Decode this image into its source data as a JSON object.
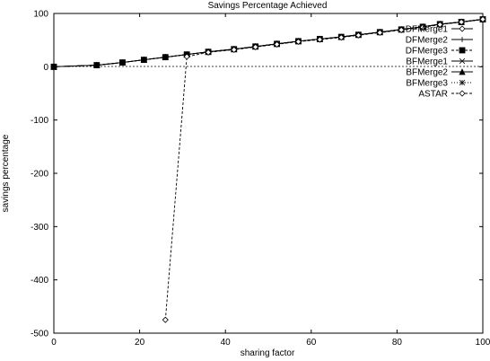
{
  "chart_data": {
    "type": "line",
    "title": "Savings Percentage Achieved",
    "xlabel": "sharing factor",
    "ylabel": "savings percentage",
    "xlim": [
      0,
      100
    ],
    "ylim": [
      -500,
      100
    ],
    "xticks": [
      "0",
      "20",
      "40",
      "60",
      "80",
      "100"
    ],
    "yticks": [
      "100",
      "0",
      "-100",
      "-200",
      "-300",
      "-400",
      "-500"
    ],
    "grid": false,
    "legend_position": "top-right",
    "zero_line": true,
    "series": [
      {
        "name": "DFMerge1",
        "marker": "diamond",
        "dash": "solid",
        "x": [
          0,
          10,
          16,
          21,
          26,
          31,
          36,
          42,
          47,
          52,
          57,
          62,
          67,
          71,
          76,
          81,
          86,
          90,
          95,
          100
        ],
        "y": [
          0,
          3,
          8,
          13,
          18,
          23,
          28,
          33,
          38,
          43,
          48,
          52,
          56,
          60,
          65,
          70,
          75,
          80,
          84,
          89
        ]
      },
      {
        "name": "DFMerge2",
        "marker": "plus",
        "dash": "solid",
        "x": [
          0,
          10,
          16,
          21,
          26,
          31,
          36,
          42,
          47,
          52,
          57,
          62,
          67,
          71,
          76,
          81,
          86,
          90,
          95,
          100
        ],
        "y": [
          0,
          3,
          8,
          13,
          18,
          23,
          28,
          33,
          38,
          43,
          48,
          52,
          56,
          60,
          65,
          70,
          75,
          80,
          84,
          89
        ]
      },
      {
        "name": "DFMerge3",
        "marker": "square",
        "dash": "dashed",
        "x": [
          0,
          10,
          16,
          21,
          26,
          31,
          36,
          42,
          47,
          52,
          57,
          62,
          67,
          71,
          76,
          81,
          86,
          90,
          95,
          100
        ],
        "y": [
          0,
          3,
          8,
          13,
          18,
          23,
          28,
          33,
          38,
          43,
          48,
          52,
          56,
          60,
          65,
          70,
          75,
          80,
          84,
          89
        ]
      },
      {
        "name": "BFMerge1",
        "marker": "cross",
        "dash": "solid",
        "x": [
          0,
          10,
          16,
          21,
          26,
          31,
          36,
          42,
          47,
          52,
          57,
          62,
          67,
          71,
          76,
          81,
          86,
          90,
          95,
          100
        ],
        "y": [
          0,
          3,
          8,
          13,
          18,
          23,
          28,
          33,
          38,
          43,
          48,
          52,
          56,
          60,
          65,
          70,
          75,
          80,
          84,
          89
        ]
      },
      {
        "name": "BFMerge2",
        "marker": "triangle",
        "dash": "solid",
        "x": [
          0,
          10,
          16,
          21,
          26,
          31,
          36,
          42,
          47,
          52,
          57,
          62,
          67,
          71,
          76,
          81,
          86,
          90,
          95,
          100
        ],
        "y": [
          0,
          3,
          8,
          13,
          18,
          23,
          28,
          33,
          38,
          43,
          48,
          52,
          56,
          60,
          65,
          70,
          75,
          80,
          84,
          89
        ]
      },
      {
        "name": "BFMerge3",
        "marker": "star",
        "dash": "dotted",
        "x": [
          0,
          10,
          16,
          21,
          26,
          31,
          36,
          42,
          47,
          52,
          57,
          62,
          67,
          71,
          76,
          81,
          86,
          90,
          95,
          100
        ],
        "y": [
          0,
          3,
          8,
          13,
          18,
          23,
          28,
          33,
          38,
          43,
          48,
          52,
          56,
          60,
          65,
          70,
          75,
          80,
          84,
          89
        ]
      },
      {
        "name": "ASTAR",
        "marker": "diamond",
        "dash": "dashed",
        "x": [
          26,
          31,
          36,
          42,
          47,
          52,
          57,
          62,
          67,
          71,
          76,
          81,
          86,
          90,
          95,
          100
        ],
        "y": [
          -475,
          19,
          27,
          32,
          37,
          42,
          47,
          51,
          55,
          59,
          64,
          69,
          74,
          79,
          84,
          89
        ]
      }
    ]
  }
}
